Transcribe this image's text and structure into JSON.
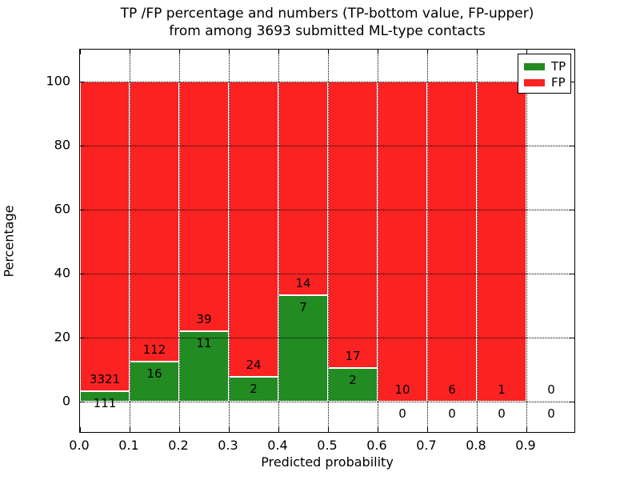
{
  "chart_data": {
    "type": "bar",
    "stacked": true,
    "title_lines": [
      "TP /FP percentage and numbers (TP-bottom value, FP-upper)",
      "from among 3693 submitted ML-type contacts"
    ],
    "total_submitted_contacts": 3693,
    "xlabel": "Predicted probability",
    "ylabel": "Percentage",
    "xlim": [
      0.0,
      1.0
    ],
    "ylim": [
      -10.25,
      109.75
    ],
    "xticks": [
      "0.0",
      "0.1",
      "0.2",
      "0.3",
      "0.4",
      "0.5",
      "0.6",
      "0.7",
      "0.8",
      "0.9"
    ],
    "yticks": [
      "0",
      "20",
      "40",
      "60",
      "80",
      "100"
    ],
    "grid": true,
    "legend": {
      "position": "upper right",
      "entries": [
        {
          "label": "TP",
          "color": "#228b22"
        },
        {
          "label": "FP",
          "color": "#fb2222"
        }
      ]
    },
    "colors": {
      "tp": "#228b22",
      "fp": "#fb2222",
      "bar_edge": "#ffffff",
      "grid": "#000000",
      "background": "#ffffff"
    },
    "bins": [
      {
        "range": [
          0.0,
          0.1
        ],
        "tp": 111,
        "fp": 3321,
        "tp_percent": 3.23
      },
      {
        "range": [
          0.1,
          0.2
        ],
        "tp": 16,
        "fp": 112,
        "tp_percent": 12.5
      },
      {
        "range": [
          0.2,
          0.3
        ],
        "tp": 11,
        "fp": 39,
        "tp_percent": 22.0
      },
      {
        "range": [
          0.3,
          0.4
        ],
        "tp": 2,
        "fp": 24,
        "tp_percent": 7.69
      },
      {
        "range": [
          0.4,
          0.5
        ],
        "tp": 7,
        "fp": 14,
        "tp_percent": 33.33
      },
      {
        "range": [
          0.5,
          0.6
        ],
        "tp": 2,
        "fp": 17,
        "tp_percent": 10.53
      },
      {
        "range": [
          0.6,
          0.7
        ],
        "tp": 0,
        "fp": 10,
        "tp_percent": 0.0
      },
      {
        "range": [
          0.7,
          0.8
        ],
        "tp": 0,
        "fp": 6,
        "tp_percent": 0.0
      },
      {
        "range": [
          0.8,
          0.9
        ],
        "tp": 0,
        "fp": 1,
        "tp_percent": 0.0
      },
      {
        "range": [
          0.9,
          1.0
        ],
        "tp": 0,
        "fp": 0,
        "tp_percent": null
      }
    ]
  }
}
